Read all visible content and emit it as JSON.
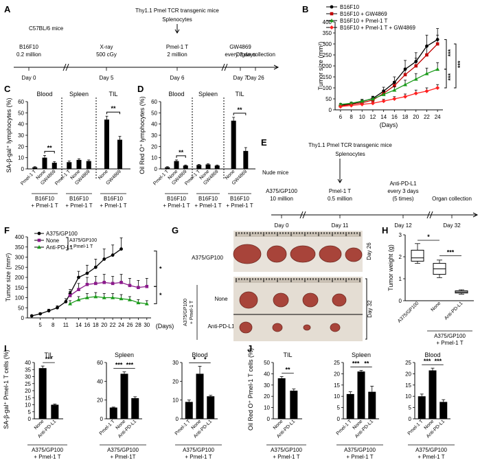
{
  "panels": {
    "A": {
      "label": "A",
      "top_label": "Thy1.1 Pmel TCR transgenic mice",
      "splenocytes": "Splenocytes",
      "strain": "C57BL/6 mice",
      "events": [
        {
          "day": "Day 0",
          "l1": "B16F10",
          "l2": "0.2 million"
        },
        {
          "day": "Day 5",
          "l1": "X-ray",
          "l2": "500 cGy"
        },
        {
          "day": "Day 6",
          "l1": "Pmel-1 T",
          "l2": "2 million"
        },
        {
          "day": "Day 7",
          "l1": "GW4869",
          "l2": "every 3 days"
        },
        {
          "day": "Day 26",
          "l1": "Organ collection",
          "l2": ""
        }
      ]
    },
    "B": {
      "label": "B"
    },
    "C": {
      "label": "C"
    },
    "D": {
      "label": "D"
    },
    "E": {
      "label": "E",
      "top_label": "Thy1.1 Pmel TCR transgenic mice",
      "splenocytes": "Splenocytes",
      "strain": "Nude mice",
      "events": [
        {
          "day": "Day 0",
          "l1": "A375/GP100",
          "l2": "10 million",
          "l3": ""
        },
        {
          "day": "Day 11",
          "l1": "Pmel-1 T",
          "l2": "0.5 million",
          "l3": ""
        },
        {
          "day": "Day 12",
          "l1": "Anti-PD-L1",
          "l2": "every 3 days",
          "l3": "(5 times)"
        },
        {
          "day": "Day 32",
          "l1": "Organ collection",
          "l2": "",
          "l3": ""
        }
      ]
    },
    "F": {
      "label": "F"
    },
    "G": {
      "label": "G",
      "row1": "A375/GP100",
      "row2": "None",
      "row3": "Anti-PD-L1",
      "group": "A375/GP100 + Pmel-1 T",
      "day_top": "Day 26",
      "day_bottom": "Day 32",
      "tumor_color": "#a8443a"
    },
    "H": {
      "label": "H"
    },
    "I": {
      "label": "I"
    },
    "J": {
      "label": "J"
    }
  },
  "chart_data": [
    {
      "id": "B",
      "type": "line",
      "title": "",
      "xlabel": "(Days)",
      "ylabel": "Tumor size (mm²)",
      "x": [
        6,
        8,
        10,
        12,
        14,
        16,
        18,
        20,
        22,
        24
      ],
      "ylim": [
        0,
        400
      ],
      "yticks": [
        0,
        50,
        100,
        150,
        200,
        250,
        300,
        350,
        400
      ],
      "series": [
        {
          "name": "B16F10",
          "color": "#000000",
          "values": [
            20,
            28,
            38,
            52,
            85,
            125,
            185,
            220,
            290,
            320
          ],
          "err": [
            4,
            5,
            8,
            10,
            18,
            25,
            40,
            40,
            50,
            50
          ]
        },
        {
          "name": "B16F10 + GW4869",
          "color": "#c00000",
          "values": [
            18,
            25,
            32,
            45,
            75,
            110,
            160,
            200,
            250,
            300
          ],
          "err": [
            4,
            5,
            6,
            10,
            15,
            20,
            30,
            35,
            40,
            40
          ]
        },
        {
          "name": "B16F10 + Pmel-1 T",
          "color": "#1a9a1a",
          "values": [
            25,
            30,
            40,
            50,
            70,
            90,
            115,
            140,
            165,
            185
          ],
          "err": [
            5,
            5,
            8,
            10,
            12,
            15,
            20,
            25,
            25,
            30
          ]
        },
        {
          "name": "B16F10 + Pmel-1 T + GW4869",
          "color": "#ff2020",
          "values": [
            15,
            20,
            25,
            30,
            40,
            50,
            60,
            75,
            85,
            100
          ],
          "err": [
            3,
            4,
            5,
            6,
            8,
            10,
            12,
            15,
            15,
            15
          ]
        }
      ],
      "annotations": [
        "***",
        "***",
        "***"
      ]
    },
    {
      "id": "C",
      "type": "bar",
      "ylabel": "SA-β-gal⁺ lymphocytes (%)",
      "ylim": [
        0,
        60
      ],
      "yticks": [
        0,
        10,
        20,
        30,
        40,
        50,
        60
      ],
      "groups": [
        {
          "title": "Blood",
          "categories": [
            "Pmel-1 T",
            "None",
            "GW4869"
          ],
          "values": [
            1.5,
            10,
            5.5
          ],
          "err": [
            0.5,
            2,
            1
          ],
          "sig": "**",
          "sub1": "B16F10",
          "sub2": "+ Pmel-1 T"
        },
        {
          "title": "Spleen",
          "categories": [
            "Pmel-1 T",
            "None",
            "GW4869"
          ],
          "values": [
            6,
            8,
            7
          ],
          "err": [
            1,
            1,
            1
          ],
          "sig": "",
          "sub1": "B16F10",
          "sub2": "+ Pmel-1 T"
        },
        {
          "title": "TIL",
          "categories": [
            "None",
            "GW4869"
          ],
          "values": [
            44,
            26
          ],
          "err": [
            3,
            3
          ],
          "sig": "**",
          "sub1": "B16F10",
          "sub2": "+ Pmel-1 T"
        }
      ]
    },
    {
      "id": "D",
      "type": "bar",
      "ylabel": "Oil Red O⁺ lymphocytes (%)",
      "ylim": [
        0,
        60
      ],
      "yticks": [
        0,
        10,
        20,
        30,
        40,
        50,
        60
      ],
      "groups": [
        {
          "title": "Blood",
          "categories": [
            "Pmel-1 T",
            "None",
            "GW4869"
          ],
          "values": [
            1.5,
            7,
            3
          ],
          "err": [
            0.5,
            1,
            0.5
          ],
          "sig": "**",
          "sub1": "B16F10",
          "sub2": "+ Pmel-1 T"
        },
        {
          "title": "Spleen",
          "categories": [
            "Pmel-1 T",
            "None",
            "GW4869"
          ],
          "values": [
            3.5,
            4,
            3
          ],
          "err": [
            0.5,
            0.5,
            0.5
          ],
          "sig": "",
          "sub1": "B16F10",
          "sub2": "+ Pmel-1 T"
        },
        {
          "title": "TIL",
          "categories": [
            "None",
            "GW4869"
          ],
          "values": [
            43,
            16
          ],
          "err": [
            3,
            3
          ],
          "sig": "**",
          "sub1": "B16F10",
          "sub2": "+ Pmel-1 T"
        }
      ]
    },
    {
      "id": "F",
      "type": "line",
      "xlabel": "(Days)",
      "ylabel": "Tumor size (mm²)",
      "xticks": [
        5,
        8,
        11,
        14,
        16,
        18,
        20,
        22,
        24,
        26,
        28,
        30
      ],
      "ylim": [
        0,
        400
      ],
      "yticks": [
        0,
        50,
        100,
        150,
        200,
        250,
        300,
        350,
        400
      ],
      "bracket_label": "A375/GP100 + Pmel-1 T",
      "series": [
        {
          "name": "A375/GP100",
          "color": "#000000",
          "x": [
            3,
            5,
            7,
            9,
            11,
            12,
            14,
            16,
            18,
            20,
            22,
            24
          ],
          "values": [
            10,
            20,
            35,
            50,
            80,
            120,
            200,
            220,
            250,
            290,
            310,
            340
          ],
          "err": [
            3,
            5,
            8,
            10,
            15,
            20,
            30,
            40,
            40,
            50,
            50,
            55
          ]
        },
        {
          "name": "None",
          "color": "#8b1a8b",
          "x": [
            12,
            14,
            16,
            18,
            20,
            22,
            24,
            26,
            28,
            30
          ],
          "values": [
            110,
            140,
            165,
            170,
            175,
            170,
            175,
            160,
            150,
            155
          ],
          "err": [
            20,
            30,
            35,
            35,
            40,
            35,
            40,
            35,
            35,
            40
          ]
        },
        {
          "name": "Anti-PD-L1",
          "color": "#1a9a1a",
          "x": [
            12,
            14,
            16,
            18,
            20,
            22,
            24,
            26,
            28,
            30
          ],
          "values": [
            70,
            90,
            100,
            105,
            100,
            100,
            95,
            90,
            75,
            70
          ],
          "err": [
            15,
            15,
            20,
            20,
            20,
            20,
            20,
            15,
            15,
            15
          ]
        }
      ],
      "annotations": [
        "*",
        "*"
      ]
    },
    {
      "id": "H",
      "type": "box",
      "ylabel": "Tumor weight (g)",
      "ylim": [
        0,
        3
      ],
      "yticks": [
        0,
        1,
        2,
        3
      ],
      "categories": [
        "A375/GP100",
        "None",
        "Anti-PD-L1"
      ],
      "boxes": [
        {
          "min": 1.7,
          "q1": 1.8,
          "median": 1.95,
          "q3": 2.3,
          "max": 2.6
        },
        {
          "min": 1.05,
          "q1": 1.2,
          "median": 1.45,
          "q3": 1.7,
          "max": 1.85
        },
        {
          "min": 0.3,
          "q1": 0.35,
          "median": 0.4,
          "q3": 0.45,
          "max": 0.5
        }
      ],
      "sig": [
        "*",
        "***"
      ],
      "sub1": "A375/GP100",
      "sub2": "+ Pmel-1 T"
    },
    {
      "id": "I",
      "type": "bar",
      "ylabel": "SA-β-gal⁺ Pmel-1 T cells (%)",
      "subplots": [
        {
          "title": "TIL",
          "categories": [
            "None",
            "Anti-PD-L1"
          ],
          "values": [
            36,
            10
          ],
          "err": [
            1.5,
            0.5
          ],
          "ymax": 40,
          "yticks": [
            0,
            5,
            10,
            15,
            20,
            25,
            30,
            35,
            40
          ],
          "sig": [
            [
              "***",
              0,
              1
            ]
          ],
          "sub1": "A375/GP100",
          "sub2": "+ Pmel-1 T"
        },
        {
          "title": "Spleen",
          "categories": [
            "Pmel-1 T",
            "None",
            "Anti-PD-L1"
          ],
          "values": [
            12,
            48,
            22
          ],
          "err": [
            0.5,
            2,
            1.5
          ],
          "ymax": 60,
          "yticks": [
            0,
            20,
            40,
            60
          ],
          "sig": [
            [
              "***",
              0,
              1
            ],
            [
              "***",
              1,
              2
            ]
          ],
          "sub1": "A375/GP100",
          "sub2": "+ Pmel-1T"
        },
        {
          "title": "Blood",
          "categories": [
            "Pmel-1 T",
            "None",
            "Anti-PD-L1"
          ],
          "values": [
            9,
            24,
            12
          ],
          "err": [
            1,
            4,
            0.5
          ],
          "ymax": 30,
          "yticks": [
            0,
            10,
            20,
            30
          ],
          "sig": [
            [
              "*",
              0,
              1
            ],
            [
              "*",
              1,
              2
            ]
          ],
          "sub1": "A375/GP100",
          "sub2": "+ Pmel-1 T"
        }
      ]
    },
    {
      "id": "J",
      "type": "bar",
      "ylabel": "Oil Red O⁺ Pmel-1 T cells (%)",
      "subplots": [
        {
          "title": "TIL",
          "categories": [
            "None",
            "Anti-PD-L1"
          ],
          "values": [
            36,
            25
          ],
          "err": [
            1.5,
            1.5
          ],
          "ymax": 50,
          "yticks": [
            0,
            10,
            20,
            30,
            40,
            50
          ],
          "sig": [
            [
              "**",
              0,
              1
            ]
          ],
          "sub1": "A375/GP100",
          "sub2": "+ Pmel-1 T"
        },
        {
          "title": "Spleen",
          "categories": [
            "Pmel-1 T",
            "None",
            "Anti-PD-L1"
          ],
          "values": [
            11,
            21,
            12
          ],
          "err": [
            1,
            0.5,
            2.5
          ],
          "ymax": 25,
          "yticks": [
            0,
            5,
            10,
            15,
            20,
            25
          ],
          "sig": [
            [
              "***",
              0,
              1
            ],
            [
              "**",
              1,
              2
            ]
          ],
          "sub1": "A375/GP100",
          "sub2": "+ Pmel-1 T"
        },
        {
          "title": "Blood",
          "categories": [
            "Pmel-1 T",
            "None",
            "Anti-PD-L1"
          ],
          "values": [
            10,
            21.5,
            7.5
          ],
          "err": [
            1,
            1,
            1
          ],
          "ymax": 25,
          "yticks": [
            0,
            5,
            10,
            15,
            20,
            25
          ],
          "sig": [
            [
              "***",
              0,
              1
            ],
            [
              "***",
              1,
              2
            ]
          ],
          "sub1": "A375/GP100",
          "sub2": "+ Pmel-1 T"
        }
      ]
    }
  ]
}
